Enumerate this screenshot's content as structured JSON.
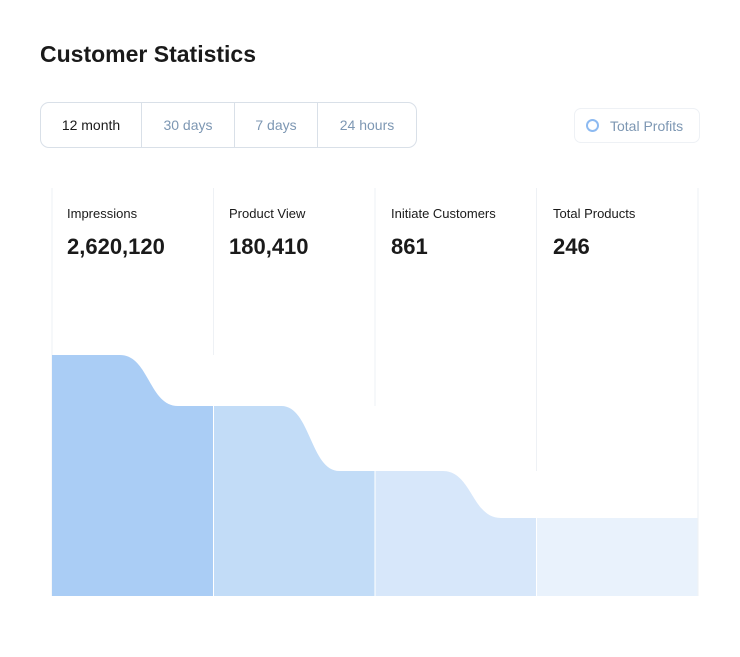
{
  "title": "Customer Statistics",
  "tabs": [
    {
      "label": "12 month",
      "active": true
    },
    {
      "label": "30 days"
    },
    {
      "label": "7 days"
    },
    {
      "label": "24 hours"
    }
  ],
  "legend": {
    "label": "Total Profits",
    "color": "#8dbaf1"
  },
  "chart_data": {
    "type": "funnel",
    "categories": [
      "Impressions",
      "Product View",
      "Initiate Customers",
      "Total Products"
    ],
    "value_labels": [
      "2,620,120",
      "180,410",
      "861",
      "246"
    ],
    "values": [
      2620120,
      180410,
      861,
      246
    ],
    "colors": [
      "#aacdf5",
      "#c2dcf7",
      "#d7e7fa",
      "#e9f2fc"
    ]
  }
}
